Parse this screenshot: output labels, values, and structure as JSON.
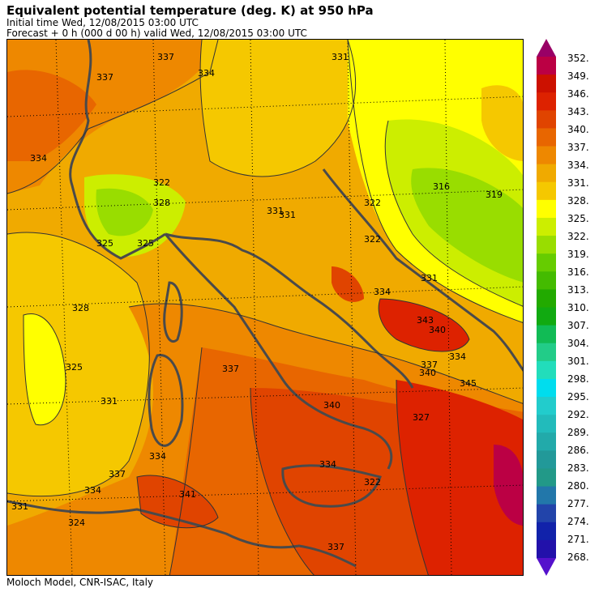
{
  "header": {
    "title": "Equivalent potential temperature (deg. K) at 950 hPa",
    "initial_time": "Initial time  Wed, 12/08/2015  03:00 UTC",
    "forecast": "Forecast  +   0 h  (000 d 00 h)  valid Wed, 12/08/2015 03:00 UTC"
  },
  "footer": {
    "credit": "Moloch Model, CNR-ISAC, Italy"
  },
  "colorbar": {
    "levels": [
      "352.",
      "349.",
      "346.",
      "343.",
      "340.",
      "337.",
      "334.",
      "331.",
      "328.",
      "325.",
      "322.",
      "319.",
      "316.",
      "313.",
      "310.",
      "307.",
      "304.",
      "301.",
      "298.",
      "295.",
      "292.",
      "289.",
      "286.",
      "283.",
      "280.",
      "277.",
      "274.",
      "271.",
      "268."
    ],
    "colors": [
      "#990066",
      "#bb0044",
      "#cc1100",
      "#dd2200",
      "#e04400",
      "#e86600",
      "#ee8800",
      "#f0aa00",
      "#f5c800",
      "#ffff00",
      "#ccee00",
      "#99dd00",
      "#66cc00",
      "#44bb00",
      "#22aa00",
      "#11aa11",
      "#11bb55",
      "#22cc88",
      "#22ddbb",
      "#00ddee",
      "#22cccc",
      "#22bbbb",
      "#22aaaa",
      "#229999",
      "#229988",
      "#2277aa",
      "#2244aa",
      "#1122aa",
      "#2211aa",
      "#5511cc"
    ]
  },
  "contour_labels": [
    {
      "text": "337"
    },
    {
      "text": "337"
    },
    {
      "text": "334"
    },
    {
      "text": "334"
    },
    {
      "text": "331"
    },
    {
      "text": "331"
    },
    {
      "text": "328"
    },
    {
      "text": "325"
    },
    {
      "text": "325"
    },
    {
      "text": "322"
    },
    {
      "text": "322"
    },
    {
      "text": "319"
    },
    {
      "text": "316"
    },
    {
      "text": "322"
    },
    {
      "text": "331"
    },
    {
      "text": "334"
    },
    {
      "text": "343"
    },
    {
      "text": "340"
    },
    {
      "text": "334"
    },
    {
      "text": "340"
    },
    {
      "text": "345"
    },
    {
      "text": "337"
    },
    {
      "text": "327"
    },
    {
      "text": "337"
    },
    {
      "text": "340"
    },
    {
      "text": "334"
    },
    {
      "text": "341"
    },
    {
      "text": "337"
    },
    {
      "text": "334"
    },
    {
      "text": "331"
    },
    {
      "text": "324"
    },
    {
      "text": "331"
    },
    {
      "text": "334"
    },
    {
      "text": "337"
    },
    {
      "text": "328"
    },
    {
      "text": "325"
    },
    {
      "text": "322"
    },
    {
      "text": "331"
    }
  ]
}
